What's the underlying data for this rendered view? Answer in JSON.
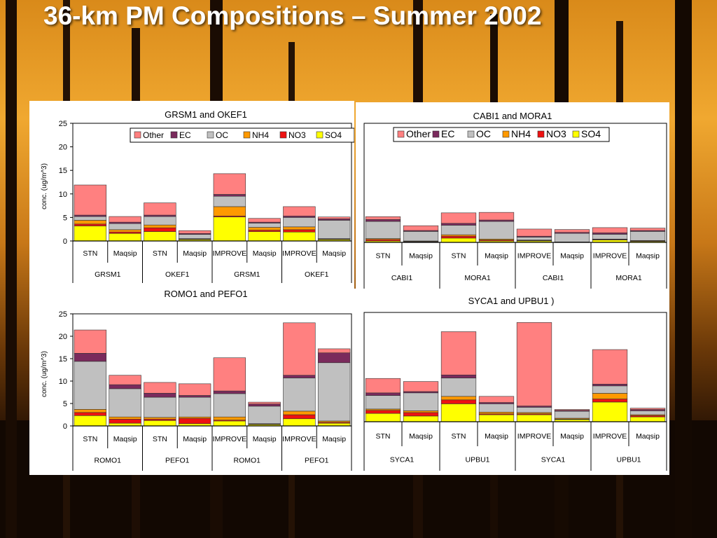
{
  "slide": {
    "title": "36-km PM Compositions – Summer 2002"
  },
  "components": [
    "SO4",
    "NO3",
    "NH4",
    "OC",
    "EC",
    "Other"
  ],
  "legend_order": [
    "Other",
    "EC",
    "OC",
    "NH4",
    "NO3",
    "SO4"
  ],
  "colors": {
    "SO4": "#ffff00",
    "NO3": "#ee1111",
    "NH4": "#ff9900",
    "OC": "#c0c0c0",
    "EC": "#7a2a5c",
    "Other": "#ff8080"
  },
  "chart_data": [
    {
      "type": "bar",
      "stacked": true,
      "title": "GRSM1 and OKEF1",
      "ylabel": "conc. (ug/m^3)",
      "ylim": [
        0,
        25
      ],
      "yticks": [
        0,
        5,
        10,
        15,
        20,
        25
      ],
      "legend": "top",
      "categories": [
        "STN",
        "Maqsip",
        "STN",
        "Maqsip",
        "IMPROVE",
        "Maqsip",
        "IMPROVE",
        "Maqsip"
      ],
      "site_labels": [
        "GRSM1",
        "OKEF1",
        "GRSM1",
        "OKEF1"
      ],
      "series": [
        {
          "name": "SO4",
          "values": [
            3.2,
            1.6,
            2.0,
            0.3,
            5.1,
            2.0,
            1.9,
            0.3
          ]
        },
        {
          "name": "NO3",
          "values": [
            0.4,
            0.3,
            0.8,
            0.1,
            0.2,
            0.3,
            0.5,
            0.1
          ]
        },
        {
          "name": "NH4",
          "values": [
            0.8,
            0.5,
            0.6,
            0.1,
            2.0,
            0.6,
            0.6,
            0.1
          ]
        },
        {
          "name": "OC",
          "values": [
            0.8,
            1.3,
            1.8,
            0.9,
            2.2,
            0.9,
            2.0,
            3.9
          ]
        },
        {
          "name": "EC",
          "values": [
            0.3,
            0.3,
            0.3,
            0.2,
            0.4,
            0.2,
            0.3,
            0.3
          ]
        },
        {
          "name": "Other",
          "values": [
            6.4,
            1.2,
            2.6,
            0.6,
            4.4,
            0.8,
            2.0,
            0.4
          ]
        }
      ]
    },
    {
      "type": "bar",
      "stacked": true,
      "title": "CABI1 and MORA1",
      "ylabel": "",
      "ylim": [
        0,
        25
      ],
      "legend": "top",
      "categories": [
        "STN",
        "Maqsip",
        "STN",
        "Maqsip",
        "IMPROVE",
        "Maqsip",
        "IMPROVE",
        "Maqsip"
      ],
      "site_labels": [
        "CABI1",
        "MORA1",
        "CABI1",
        "MORA1"
      ],
      "series": [
        {
          "name": "SO4",
          "values": [
            0.3,
            0.1,
            0.9,
            0.3,
            0.3,
            0.1,
            0.5,
            0.2
          ]
        },
        {
          "name": "NO3",
          "values": [
            0.3,
            0.1,
            0.4,
            0.2,
            0.1,
            0.0,
            0.1,
            0.1
          ]
        },
        {
          "name": "NH4",
          "values": [
            0.2,
            0.1,
            0.3,
            0.2,
            0.1,
            0.0,
            0.1,
            0.1
          ]
        },
        {
          "name": "OC",
          "values": [
            3.6,
            2.0,
            2.0,
            3.7,
            0.6,
            1.8,
            1.0,
            1.9
          ]
        },
        {
          "name": "EC",
          "values": [
            0.4,
            0.2,
            0.4,
            0.3,
            0.2,
            0.2,
            0.3,
            0.2
          ]
        },
        {
          "name": "Other",
          "values": [
            0.6,
            1.0,
            2.2,
            1.6,
            1.5,
            0.6,
            1.1,
            0.5
          ]
        }
      ]
    },
    {
      "type": "bar",
      "stacked": true,
      "title": "ROMO1 and PEFO1",
      "ylabel": "conc. (ug/m^3)",
      "ylim": [
        0,
        25
      ],
      "yticks": [
        0,
        5,
        10,
        15,
        20,
        25
      ],
      "legend": "none",
      "categories": [
        "STN",
        "Maqsip",
        "STN",
        "Maqsip",
        "IMPROVE",
        "Maqsip",
        "IMPROVE",
        "Maqsip"
      ],
      "site_labels": [
        "ROMO1",
        "PEFO1",
        "ROMO1",
        "PEFO1"
      ],
      "series": [
        {
          "name": "SO4",
          "values": [
            2.3,
            0.6,
            1.2,
            0.5,
            1.1,
            0.3,
            1.6,
            0.6
          ]
        },
        {
          "name": "NO3",
          "values": [
            0.7,
            0.9,
            0.3,
            1.2,
            0.2,
            0.1,
            0.9,
            0.2
          ]
        },
        {
          "name": "NH4",
          "values": [
            0.7,
            0.5,
            0.4,
            0.3,
            0.7,
            0.1,
            0.8,
            0.3
          ]
        },
        {
          "name": "OC",
          "values": [
            10.7,
            6.3,
            4.5,
            4.4,
            5.2,
            3.9,
            7.4,
            13.0
          ]
        },
        {
          "name": "EC",
          "values": [
            1.8,
            0.9,
            0.9,
            0.4,
            0.6,
            0.5,
            0.6,
            2.2
          ]
        },
        {
          "name": "Other",
          "values": [
            5.2,
            2.1,
            2.4,
            2.6,
            7.4,
            0.4,
            11.7,
            0.9
          ]
        }
      ]
    },
    {
      "type": "bar",
      "stacked": true,
      "title": "SYCA1 and UPBU1  )",
      "ylabel": "",
      "ylim": [
        0,
        25
      ],
      "legend": "none",
      "categories": [
        "STN",
        "Maqsip",
        "STN",
        "Maqsip",
        "IMPROVE",
        "Maqsip",
        "IMPROVE",
        "Maqsip"
      ],
      "site_labels": [
        "SYCA1",
        "UPBU1",
        "SYCA1",
        "UPBU1"
      ],
      "series": [
        {
          "name": "SO4",
          "values": [
            1.9,
            1.3,
            4.1,
            1.6,
            1.6,
            0.5,
            4.5,
            1.1
          ]
        },
        {
          "name": "NO3",
          "values": [
            0.7,
            0.8,
            0.9,
            0.2,
            0.2,
            0.1,
            0.7,
            0.3
          ]
        },
        {
          "name": "NH4",
          "values": [
            0.3,
            0.4,
            0.8,
            0.4,
            0.3,
            0.2,
            1.3,
            0.2
          ]
        },
        {
          "name": "OC",
          "values": [
            3.1,
            4.1,
            4.2,
            1.9,
            1.2,
            1.6,
            1.7,
            0.9
          ]
        },
        {
          "name": "EC",
          "values": [
            0.6,
            0.3,
            0.7,
            0.3,
            0.3,
            0.2,
            0.4,
            0.3
          ]
        },
        {
          "name": "Other",
          "values": [
            3.3,
            2.3,
            9.9,
            1.4,
            19.1,
            0.2,
            7.9,
            0.3
          ]
        }
      ]
    }
  ]
}
